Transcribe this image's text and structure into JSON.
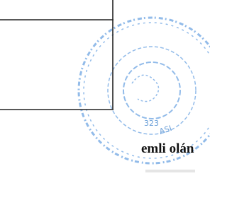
{
  "document": {
    "text_fragment": "emli olán",
    "stamp": {
      "number": "323",
      "text": "ASI"
    }
  }
}
